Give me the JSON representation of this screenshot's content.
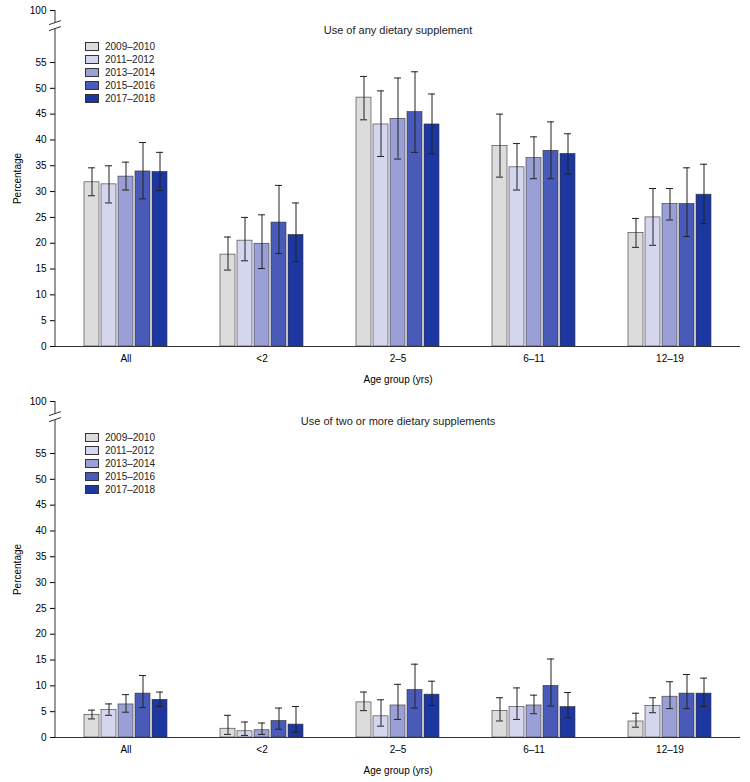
{
  "chart_data": [
    {
      "type": "bar",
      "title": "Use of any dietary supplement",
      "x_label": "Age group (yrs)",
      "y_label": "Percentage",
      "categories": [
        "All",
        "<2",
        "2–5",
        "6–11",
        "12–19"
      ],
      "ylim": [
        0,
        100
      ],
      "yticks": [
        0,
        5,
        10,
        15,
        20,
        25,
        30,
        35,
        40,
        45,
        50,
        55,
        100
      ],
      "grid": false,
      "legend": "top-left",
      "series": [
        {
          "name": "2009–2010",
          "color": "#dcdcdc",
          "values": [
            31.8,
            17.8,
            48.2,
            38.8,
            22.0
          ],
          "lower": [
            29.2,
            14.8,
            43.9,
            32.8,
            19.2
          ],
          "upper": [
            34.6,
            21.2,
            52.3,
            45.0,
            24.8
          ]
        },
        {
          "name": "2011–2012",
          "color": "#d4d5ee",
          "values": [
            31.4,
            20.5,
            43.0,
            34.7,
            25.0
          ],
          "lower": [
            27.8,
            16.6,
            36.8,
            30.3,
            19.6
          ],
          "upper": [
            35.0,
            25.0,
            49.5,
            39.3,
            30.6
          ]
        },
        {
          "name": "2013–2014",
          "color": "#9a9fd6",
          "values": [
            32.9,
            19.9,
            44.1,
            36.5,
            27.6
          ],
          "lower": [
            30.3,
            15.1,
            36.3,
            32.5,
            24.5
          ],
          "upper": [
            35.7,
            25.5,
            52.0,
            40.6,
            30.6
          ]
        },
        {
          "name": "2015–2016",
          "color": "#4a5ab8",
          "values": [
            33.9,
            24.0,
            45.4,
            37.9,
            27.6
          ],
          "lower": [
            28.6,
            18.0,
            37.6,
            32.5,
            21.3
          ],
          "upper": [
            39.5,
            31.2,
            53.2,
            43.5,
            34.6
          ]
        },
        {
          "name": "2017–2018",
          "color": "#1d37a0",
          "values": [
            33.8,
            21.6,
            43.0,
            37.3,
            29.4
          ],
          "lower": [
            30.2,
            16.4,
            37.3,
            33.4,
            23.8
          ],
          "upper": [
            37.6,
            27.8,
            48.9,
            41.2,
            35.3
          ]
        }
      ]
    },
    {
      "type": "bar",
      "title": "Use of two or more dietary supplements",
      "x_label": "Age group (yrs)",
      "y_label": "Percentage",
      "categories": [
        "All",
        "<2",
        "2–5",
        "6–11",
        "12–19"
      ],
      "ylim": [
        0,
        100
      ],
      "yticks": [
        0,
        5,
        10,
        15,
        20,
        25,
        30,
        35,
        40,
        45,
        50,
        55,
        100
      ],
      "grid": false,
      "legend": "top-left",
      "series": [
        {
          "name": "2009–2010",
          "color": "#dcdcdc",
          "values": [
            4.4,
            1.7,
            6.8,
            5.1,
            3.1
          ],
          "lower": [
            3.6,
            0.6,
            5.2,
            3.2,
            2.0
          ],
          "upper": [
            5.3,
            4.3,
            8.8,
            7.7,
            4.7
          ]
        },
        {
          "name": "2011–2012",
          "color": "#d4d5ee",
          "values": [
            5.3,
            1.2,
            4.1,
            5.9,
            6.1
          ],
          "lower": [
            4.3,
            0.4,
            2.2,
            3.5,
            4.8
          ],
          "upper": [
            6.5,
            3.0,
            7.3,
            9.6,
            7.7
          ]
        },
        {
          "name": "2013–2014",
          "color": "#9a9fd6",
          "values": [
            6.4,
            1.4,
            6.2,
            6.2,
            7.9
          ],
          "lower": [
            4.9,
            0.6,
            3.5,
            4.6,
            5.6
          ],
          "upper": [
            8.3,
            2.8,
            10.3,
            8.2,
            10.8
          ]
        },
        {
          "name": "2015–2016",
          "color": "#4a5ab8",
          "values": [
            8.5,
            3.2,
            9.2,
            10.0,
            8.5
          ],
          "lower": [
            5.8,
            1.6,
            5.7,
            6.1,
            5.6
          ],
          "upper": [
            12.0,
            5.7,
            14.2,
            15.2,
            12.2
          ]
        },
        {
          "name": "2017–2018",
          "color": "#1d37a0",
          "values": [
            7.3,
            2.5,
            8.3,
            5.9,
            8.5
          ],
          "lower": [
            6.0,
            1.0,
            6.2,
            3.8,
            6.0
          ],
          "upper": [
            8.8,
            6.0,
            10.9,
            8.7,
            11.5
          ]
        }
      ]
    }
  ]
}
